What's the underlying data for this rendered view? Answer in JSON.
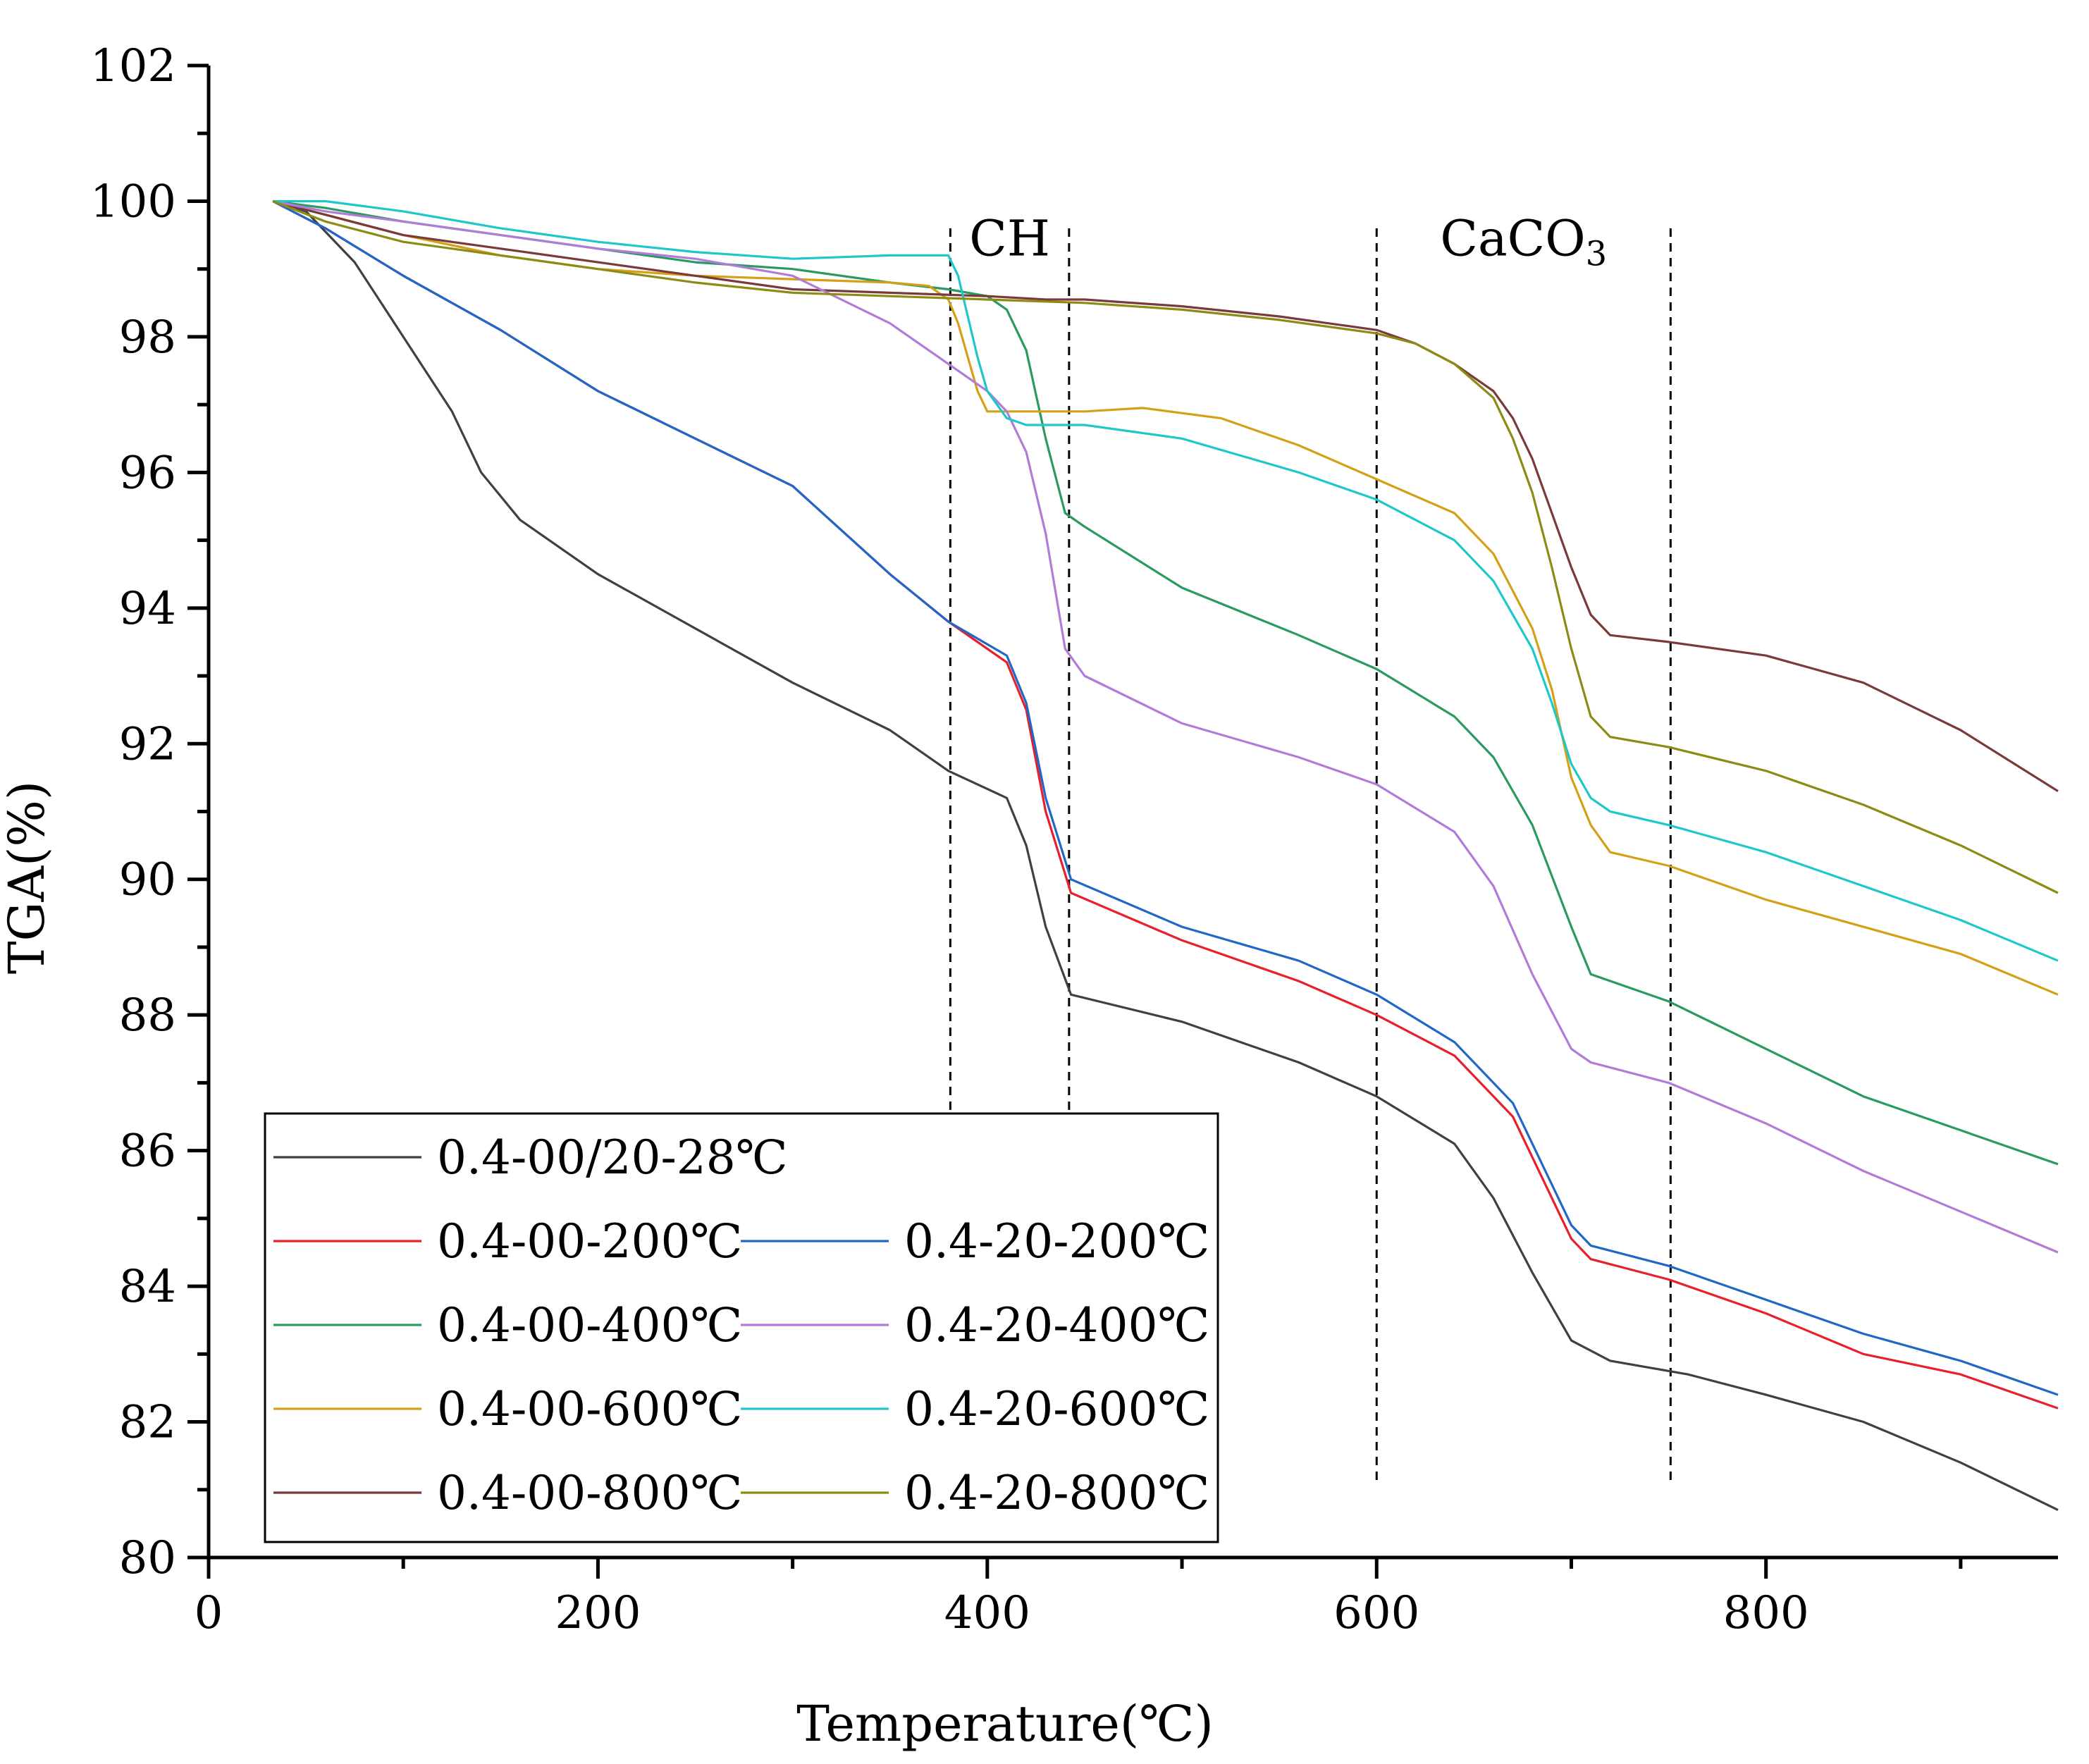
{
  "chart_data": {
    "type": "line",
    "xlabel": "Temperature(℃)",
    "ylabel": "TGA(%)",
    "xlim": [
      0,
      950
    ],
    "ylim": [
      80,
      102
    ],
    "xticks": [
      0,
      200,
      400,
      600,
      800
    ],
    "yticks": [
      80,
      82,
      84,
      86,
      88,
      90,
      92,
      94,
      96,
      98,
      100,
      102
    ],
    "grid": false,
    "legend_position": "bottom-left",
    "regions": [
      {
        "label": "CH",
        "x_start": 381,
        "x_end": 442
      },
      {
        "label": "CaCO",
        "subscript": "3",
        "x_start": 600,
        "x_end": 751
      }
    ],
    "series": [
      {
        "name": "0.4-00/20-28℃",
        "color": "#404040",
        "x": [
          33,
          50,
          75,
          100,
          125,
          140,
          160,
          200,
          250,
          300,
          350,
          380,
          410,
          420,
          430,
          443,
          500,
          560,
          600,
          640,
          660,
          680,
          700,
          720,
          760,
          800,
          850,
          900,
          950
        ],
        "y": [
          100,
          99.85,
          99.1,
          98.0,
          96.9,
          96.0,
          95.3,
          94.5,
          93.7,
          92.9,
          92.2,
          91.6,
          91.2,
          90.5,
          89.3,
          88.3,
          87.9,
          87.3,
          86.8,
          86.1,
          85.3,
          84.2,
          83.2,
          82.9,
          82.7,
          82.4,
          82.0,
          81.4,
          80.7
        ]
      },
      {
        "name": "0.4-00-200℃",
        "color": "#e8202a",
        "x": [
          33,
          60,
          100,
          150,
          200,
          250,
          300,
          350,
          380,
          410,
          420,
          430,
          443,
          500,
          560,
          600,
          640,
          670,
          690,
          700,
          710,
          750,
          800,
          850,
          900,
          950
        ],
        "y": [
          100,
          99.6,
          98.9,
          98.1,
          97.2,
          96.5,
          95.8,
          94.5,
          93.8,
          93.2,
          92.5,
          91.0,
          89.8,
          89.1,
          88.5,
          88.0,
          87.4,
          86.5,
          85.3,
          84.7,
          84.4,
          84.1,
          83.6,
          83.0,
          82.7,
          82.2
        ]
      },
      {
        "name": "0.4-00-400℃",
        "color": "#2a9a5f",
        "x": [
          33,
          60,
          100,
          150,
          200,
          250,
          300,
          350,
          380,
          400,
          410,
          420,
          430,
          440,
          450,
          500,
          560,
          600,
          640,
          660,
          680,
          700,
          710,
          750,
          800,
          850,
          900,
          950
        ],
        "y": [
          100,
          99.9,
          99.7,
          99.5,
          99.3,
          99.1,
          99.0,
          98.8,
          98.7,
          98.6,
          98.4,
          97.8,
          96.5,
          95.4,
          95.2,
          94.3,
          93.6,
          93.1,
          92.4,
          91.8,
          90.8,
          89.3,
          88.6,
          88.2,
          87.5,
          86.8,
          86.3,
          85.8
        ]
      },
      {
        "name": "0.4-00-600℃",
        "color": "#d4a017",
        "x": [
          33,
          60,
          100,
          150,
          200,
          250,
          300,
          350,
          370,
          380,
          385,
          390,
          395,
          400,
          410,
          450,
          480,
          520,
          560,
          600,
          640,
          660,
          680,
          690,
          700,
          710,
          720,
          750,
          800,
          850,
          900,
          950
        ],
        "y": [
          100,
          99.8,
          99.5,
          99.2,
          99.0,
          98.9,
          98.85,
          98.8,
          98.75,
          98.55,
          98.2,
          97.7,
          97.2,
          96.9,
          96.9,
          96.9,
          96.95,
          96.8,
          96.4,
          95.9,
          95.4,
          94.8,
          93.7,
          92.8,
          91.5,
          90.8,
          90.4,
          90.2,
          89.7,
          89.3,
          88.9,
          88.3
        ]
      },
      {
        "name": "0.4-00-800℃",
        "color": "#7a3a3a",
        "x": [
          33,
          60,
          100,
          150,
          200,
          250,
          300,
          350,
          400,
          430,
          450,
          500,
          550,
          600,
          620,
          640,
          660,
          670,
          680,
          690,
          700,
          710,
          720,
          750,
          800,
          850,
          900,
          950
        ],
        "y": [
          100,
          99.8,
          99.5,
          99.3,
          99.1,
          98.9,
          98.7,
          98.65,
          98.6,
          98.55,
          98.55,
          98.45,
          98.3,
          98.1,
          97.9,
          97.6,
          97.2,
          96.8,
          96.2,
          95.4,
          94.6,
          93.9,
          93.6,
          93.5,
          93.3,
          92.9,
          92.2,
          91.3
        ]
      },
      {
        "name": "0.4-20-200℃",
        "color": "#2067c8",
        "x": [
          33,
          60,
          100,
          150,
          200,
          250,
          300,
          350,
          380,
          410,
          420,
          430,
          443,
          500,
          560,
          600,
          640,
          670,
          690,
          700,
          710,
          750,
          800,
          850,
          900,
          950
        ],
        "y": [
          100,
          99.6,
          98.9,
          98.1,
          97.2,
          96.5,
          95.8,
          94.5,
          93.8,
          93.3,
          92.6,
          91.2,
          90.0,
          89.3,
          88.8,
          88.3,
          87.6,
          86.7,
          85.5,
          84.9,
          84.6,
          84.3,
          83.8,
          83.3,
          82.9,
          82.4
        ]
      },
      {
        "name": "0.4-20-400℃",
        "color": "#b07cd8",
        "x": [
          33,
          60,
          100,
          150,
          200,
          250,
          300,
          350,
          380,
          400,
          410,
          420,
          430,
          440,
          450,
          500,
          560,
          600,
          640,
          660,
          680,
          700,
          710,
          750,
          800,
          850,
          900,
          950
        ],
        "y": [
          100,
          99.85,
          99.7,
          99.5,
          99.3,
          99.15,
          98.9,
          98.2,
          97.6,
          97.2,
          96.9,
          96.3,
          95.1,
          93.4,
          93.0,
          92.3,
          91.8,
          91.4,
          90.7,
          89.9,
          88.6,
          87.5,
          87.3,
          87.0,
          86.4,
          85.7,
          85.1,
          84.5
        ]
      },
      {
        "name": "0.4-20-600℃",
        "color": "#1fc8c8",
        "x": [
          33,
          60,
          100,
          150,
          200,
          250,
          300,
          350,
          370,
          380,
          385,
          390,
          395,
          400,
          410,
          420,
          450,
          500,
          560,
          600,
          640,
          660,
          680,
          690,
          700,
          710,
          720,
          750,
          800,
          850,
          900,
          950
        ],
        "y": [
          100,
          100,
          99.85,
          99.6,
          99.4,
          99.25,
          99.15,
          99.2,
          99.2,
          99.2,
          98.9,
          98.3,
          97.7,
          97.2,
          96.8,
          96.7,
          96.7,
          96.5,
          96.0,
          95.6,
          95.0,
          94.4,
          93.4,
          92.6,
          91.7,
          91.2,
          91.0,
          90.8,
          90.4,
          89.9,
          89.4,
          88.8
        ]
      },
      {
        "name": "0.4-20-800℃",
        "color": "#8c8c14",
        "x": [
          33,
          60,
          100,
          150,
          200,
          250,
          300,
          350,
          400,
          450,
          500,
          550,
          600,
          620,
          640,
          660,
          670,
          680,
          690,
          700,
          710,
          720,
          750,
          800,
          850,
          900,
          950
        ],
        "y": [
          100,
          99.7,
          99.4,
          99.2,
          99.0,
          98.8,
          98.65,
          98.6,
          98.55,
          98.5,
          98.4,
          98.25,
          98.05,
          97.9,
          97.6,
          97.1,
          96.5,
          95.7,
          94.6,
          93.4,
          92.4,
          92.1,
          91.95,
          91.6,
          91.1,
          90.5,
          89.8
        ]
      }
    ],
    "legend_order": [
      [
        "0.4-00/20-28℃"
      ],
      [
        "0.4-00-200℃",
        "0.4-20-200℃"
      ],
      [
        "0.4-00-400℃",
        "0.4-20-400℃"
      ],
      [
        "0.4-00-600℃",
        "0.4-20-600℃"
      ],
      [
        "0.4-00-800℃",
        "0.4-20-800℃"
      ]
    ]
  }
}
